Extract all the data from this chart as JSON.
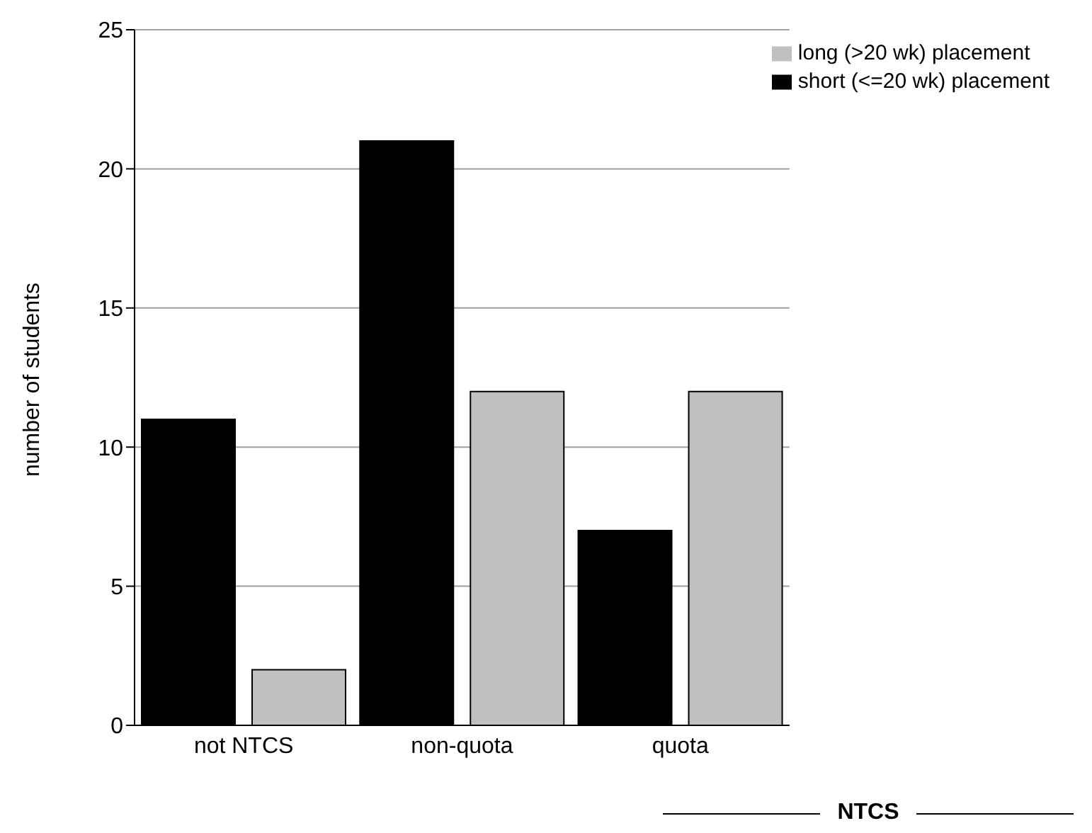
{
  "chart_data": {
    "type": "bar",
    "ylabel": "number of students",
    "categories": [
      "not NTCS",
      "non-quota",
      "quota"
    ],
    "series": [
      {
        "name": "short (<=20 wk) placement",
        "color": "#000000",
        "values": [
          11,
          21,
          7
        ]
      },
      {
        "name": "long (>20 wk) placement",
        "color": "#c0c0c0",
        "values": [
          2,
          12,
          12
        ]
      }
    ],
    "ylim": [
      0,
      25
    ],
    "yticks": [
      0,
      5,
      10,
      15,
      20,
      25
    ],
    "grid": "y",
    "legend": "top right",
    "annotations": [
      "NTCS"
    ]
  }
}
